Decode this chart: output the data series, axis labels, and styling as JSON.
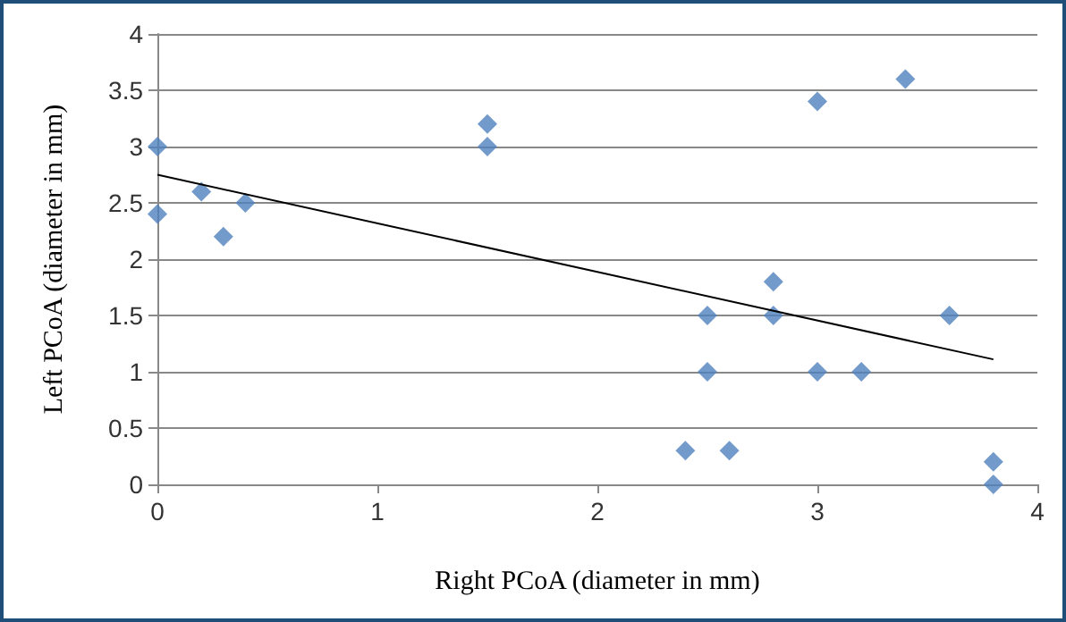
{
  "chart_data": {
    "type": "scatter",
    "xlabel": "Right PCoA (diameter in mm)",
    "ylabel": "Left PCoA (diameter in mm)",
    "xlim": [
      0,
      4
    ],
    "xticks": [
      0,
      1,
      2,
      3,
      4
    ],
    "ylim": [
      0,
      4
    ],
    "yticks": [
      0,
      0.5,
      1,
      1.5,
      2,
      2.5,
      3,
      3.5,
      4
    ],
    "grid": "y",
    "marker": "diamond",
    "series": [
      {
        "color": "#4f81bd",
        "x": [
          0,
          0,
          0.2,
          0.3,
          0.4,
          1.5,
          1.5,
          2.4,
          2.5,
          2.5,
          2.6,
          2.8,
          2.8,
          3,
          3,
          3.2,
          3.4,
          3.6,
          3.8,
          3.8
        ],
        "values": [
          3,
          2.4,
          2.6,
          2.2,
          2.5,
          3.2,
          3,
          0.3,
          1.5,
          1,
          0.3,
          1.8,
          1.5,
          3.4,
          1,
          1,
          3.6,
          1.5,
          0.2,
          0
        ]
      },
      {
        "type": "line",
        "color": "#000000",
        "marker": "none",
        "line_style": "solid",
        "x": [
          0,
          3.8
        ],
        "values": [
          2.75,
          1.11
        ]
      }
    ]
  }
}
